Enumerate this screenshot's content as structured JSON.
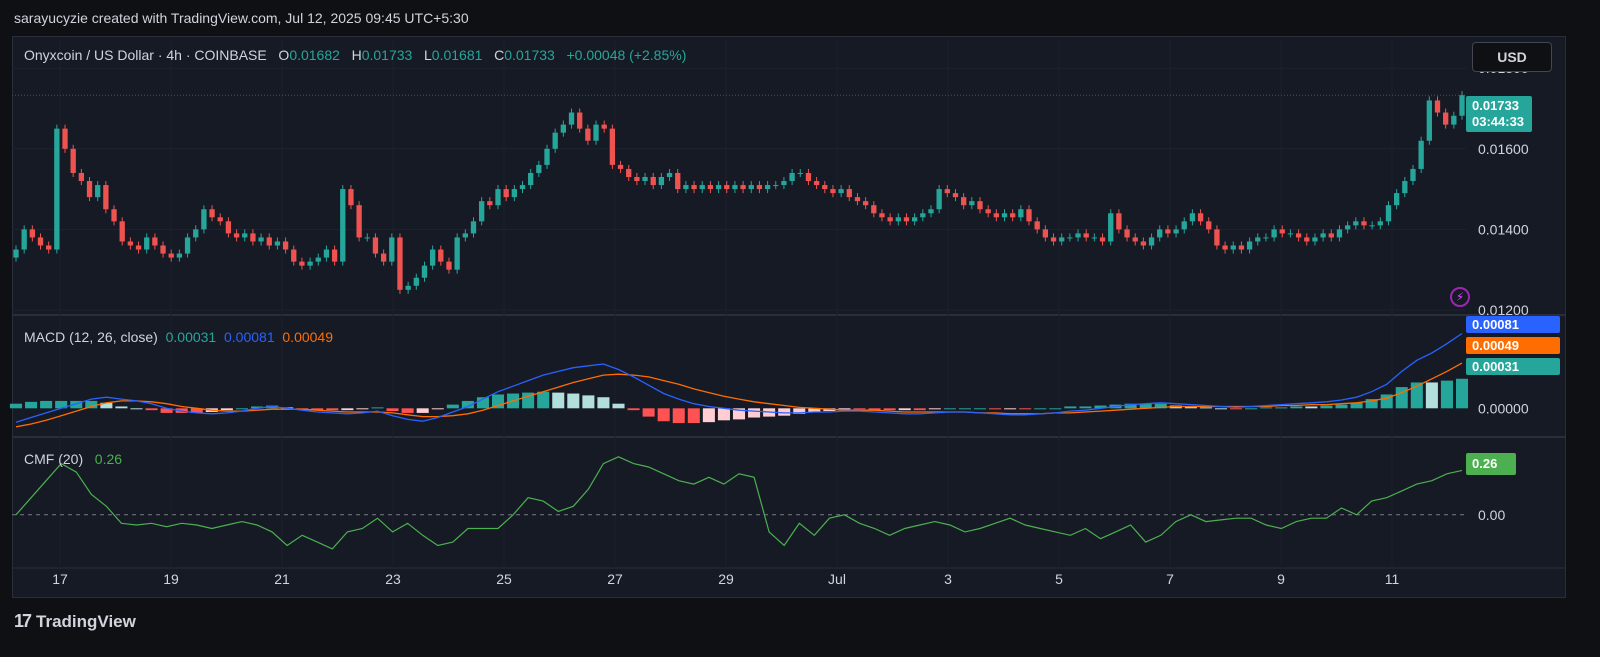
{
  "header": {
    "attribution": "sarayucyzie created with TradingView.com, Jul 12, 2025 09:45 UTC+5:30"
  },
  "legend": {
    "symbol": "Onyxcoin / US Dollar · 4h · COINBASE",
    "o_label": "O",
    "o_value": "0.01682",
    "h_label": "H",
    "h_value": "0.01733",
    "l_label": "L",
    "l_value": "0.01681",
    "c_label": "C",
    "c_value": "0.01733",
    "change": "+0.00048 (+2.85%)"
  },
  "currency_button": "USD",
  "price_tag": {
    "price": "0.01733",
    "countdown": "03:44:33"
  },
  "macd_legend": {
    "name": "MACD (12, 26, close)",
    "hist": "0.00031",
    "macd": "0.00081",
    "signal": "0.00049"
  },
  "macd_tags": {
    "macd": "0.00081",
    "signal": "0.00049",
    "hist": "0.00031"
  },
  "cmf_legend": {
    "name": "CMF (20)",
    "value": "0.26"
  },
  "cmf_tag": "0.26",
  "footer": {
    "logo_text": "TradingView",
    "logo_mark": "17"
  },
  "colors": {
    "up": "#26a69a",
    "down": "#ef5350",
    "macd": "#2962ff",
    "signal": "#ff6d00",
    "cmf": "#4caf50",
    "hist_up_strong": "#26a69a",
    "hist_up_weak": "#b2dfdb",
    "hist_down_strong": "#ff5252",
    "hist_down_weak": "#ffcdd2"
  },
  "chart_data": {
    "type": "candlestick",
    "timeframe": "4h",
    "x_ticks": [
      "17",
      "19",
      "21",
      "23",
      "25",
      "27",
      "29",
      "Jul",
      "3",
      "5",
      "7",
      "9",
      "11"
    ],
    "price_axis": {
      "ticks": [
        "0.01800",
        "0.01600",
        "0.01400",
        "0.01200"
      ],
      "ylim": [
        0.0119,
        0.0187
      ]
    },
    "macd_axis": {
      "ticks": [
        "0.00000"
      ],
      "ylim": [
        -0.0003,
        0.001
      ]
    },
    "cmf_axis": {
      "ticks": [
        "0.00"
      ],
      "ylim": [
        -0.3,
        0.45
      ]
    },
    "last_price": 0.01733,
    "close": [
      0.0135,
      0.014,
      0.0138,
      0.0136,
      0.0135,
      0.0165,
      0.016,
      0.0154,
      0.0152,
      0.0148,
      0.0151,
      0.0145,
      0.0142,
      0.0137,
      0.0136,
      0.0135,
      0.0138,
      0.0136,
      0.0134,
      0.0133,
      0.0134,
      0.0138,
      0.014,
      0.0145,
      0.0143,
      0.0142,
      0.0139,
      0.0138,
      0.0139,
      0.0137,
      0.0138,
      0.0136,
      0.0137,
      0.0135,
      0.0132,
      0.0131,
      0.0132,
      0.0133,
      0.0135,
      0.0132,
      0.015,
      0.0146,
      0.0138,
      0.0138,
      0.0134,
      0.0132,
      0.0138,
      0.0125,
      0.0126,
      0.0128,
      0.0131,
      0.0135,
      0.0132,
      0.013,
      0.0138,
      0.0139,
      0.0142,
      0.0147,
      0.0146,
      0.015,
      0.0148,
      0.015,
      0.0151,
      0.0154,
      0.0156,
      0.016,
      0.0164,
      0.0166,
      0.0169,
      0.0165,
      0.0162,
      0.0166,
      0.0165,
      0.0156,
      0.0155,
      0.0153,
      0.0152,
      0.0153,
      0.0151,
      0.0153,
      0.0154,
      0.015,
      0.0151,
      0.015,
      0.0151,
      0.015,
      0.0151,
      0.015,
      0.0151,
      0.015,
      0.0151,
      0.015,
      0.0151,
      0.0151,
      0.0152,
      0.0154,
      0.0154,
      0.0152,
      0.0151,
      0.015,
      0.0149,
      0.015,
      0.0148,
      0.0147,
      0.0146,
      0.0144,
      0.0143,
      0.0142,
      0.0143,
      0.0142,
      0.0143,
      0.0144,
      0.0145,
      0.015,
      0.0149,
      0.0148,
      0.0146,
      0.0147,
      0.0145,
      0.0144,
      0.0143,
      0.0144,
      0.0143,
      0.0145,
      0.0142,
      0.014,
      0.0138,
      0.0137,
      0.0138,
      0.0138,
      0.0139,
      0.0138,
      0.0138,
      0.0137,
      0.0144,
      0.014,
      0.0138,
      0.0137,
      0.0136,
      0.0138,
      0.014,
      0.0139,
      0.014,
      0.0142,
      0.0144,
      0.0142,
      0.014,
      0.0136,
      0.0135,
      0.0136,
      0.0135,
      0.0137,
      0.0138,
      0.0138,
      0.014,
      0.0139,
      0.0139,
      0.0138,
      0.0137,
      0.0138,
      0.0139,
      0.0138,
      0.014,
      0.0141,
      0.0142,
      0.0141,
      0.0141,
      0.0142,
      0.0146,
      0.0149,
      0.0152,
      0.0155,
      0.0162,
      0.0172,
      0.0169,
      0.0166,
      0.01682,
      0.01733
    ],
    "open": [
      0.0133,
      0.0135,
      0.014,
      0.0138,
      0.0136,
      0.0135,
      0.0165,
      0.016,
      0.0154,
      0.0152,
      0.0148,
      0.0151,
      0.0145,
      0.0142,
      0.0137,
      0.0136,
      0.0135,
      0.0138,
      0.0136,
      0.0134,
      0.0133,
      0.0134,
      0.0138,
      0.014,
      0.0145,
      0.0143,
      0.0142,
      0.0139,
      0.0138,
      0.0139,
      0.0137,
      0.0138,
      0.0136,
      0.0137,
      0.0135,
      0.0132,
      0.0131,
      0.0132,
      0.0133,
      0.0135,
      0.0132,
      0.015,
      0.0146,
      0.0138,
      0.0138,
      0.0134,
      0.0132,
      0.0138,
      0.0125,
      0.0126,
      0.0128,
      0.0131,
      0.0135,
      0.0132,
      0.013,
      0.0138,
      0.0139,
      0.0142,
      0.0147,
      0.0146,
      0.015,
      0.0148,
      0.015,
      0.0151,
      0.0154,
      0.0156,
      0.016,
      0.0164,
      0.0166,
      0.0169,
      0.0165,
      0.0162,
      0.0166,
      0.0165,
      0.0156,
      0.0155,
      0.0153,
      0.0152,
      0.0153,
      0.0151,
      0.0153,
      0.0154,
      0.015,
      0.0151,
      0.015,
      0.0151,
      0.015,
      0.0151,
      0.015,
      0.0151,
      0.015,
      0.0151,
      0.015,
      0.0151,
      0.0151,
      0.0152,
      0.0154,
      0.0154,
      0.0152,
      0.0151,
      0.015,
      0.0149,
      0.015,
      0.0148,
      0.0147,
      0.0146,
      0.0144,
      0.0143,
      0.0142,
      0.0143,
      0.0142,
      0.0143,
      0.0144,
      0.0145,
      0.015,
      0.0149,
      0.0148,
      0.0146,
      0.0147,
      0.0145,
      0.0144,
      0.0143,
      0.0144,
      0.0143,
      0.0145,
      0.0142,
      0.014,
      0.0138,
      0.0137,
      0.0138,
      0.0138,
      0.0139,
      0.0138,
      0.0138,
      0.0137,
      0.0144,
      0.014,
      0.0138,
      0.0137,
      0.0136,
      0.0138,
      0.014,
      0.0139,
      0.014,
      0.0142,
      0.0144,
      0.0142,
      0.014,
      0.0136,
      0.0135,
      0.0136,
      0.0135,
      0.0137,
      0.0138,
      0.0138,
      0.014,
      0.0139,
      0.0139,
      0.0138,
      0.0137,
      0.0138,
      0.0139,
      0.0138,
      0.014,
      0.0141,
      0.0142,
      0.0141,
      0.0141,
      0.0142,
      0.0146,
      0.0149,
      0.0152,
      0.0155,
      0.0162,
      0.0172,
      0.0169,
      0.0166,
      0.01682
    ],
    "macd": [
      -0.00015,
      -0.0001,
      -5e-05,
      0.0,
      5e-05,
      0.0001,
      0.00012,
      0.0001,
      8e-05,
      5e-05,
      0.0,
      -3e-05,
      -5e-05,
      -6e-05,
      -5e-05,
      -3e-05,
      0.0,
      2e-05,
      0.0,
      -2e-05,
      -4e-05,
      -5e-05,
      -6e-05,
      -5e-05,
      -3e-05,
      -8e-05,
      -0.00012,
      -0.00014,
      -0.0001,
      -4e-05,
      2e-05,
      0.0001,
      0.00018,
      0.00024,
      0.0003,
      0.00036,
      0.0004,
      0.00044,
      0.00046,
      0.00048,
      0.00042,
      0.00034,
      0.00025,
      0.00016,
      0.0001,
      5e-05,
      2e-05,
      0.0,
      -2e-05,
      -3e-05,
      -4e-05,
      -5e-05,
      -5e-05,
      -4e-05,
      -4e-05,
      -3e-05,
      -3e-05,
      -4e-05,
      -5e-05,
      -6e-05,
      -6e-05,
      -5e-05,
      -4e-05,
      -4e-05,
      -5e-05,
      -6e-05,
      -7e-05,
      -7e-05,
      -6e-05,
      -5e-05,
      -3e-05,
      -2e-05,
      0.0,
      2e-05,
      4e-05,
      5e-05,
      6e-05,
      5e-05,
      4e-05,
      3e-05,
      2e-05,
      1e-05,
      2e-05,
      3e-05,
      4e-05,
      5e-05,
      6e-05,
      7e-05,
      9e-05,
      0.00012,
      0.00018,
      0.00026,
      0.0004,
      0.00052,
      0.0006,
      0.0007,
      0.00081
    ],
    "signal": [
      -0.0002,
      -0.00017,
      -0.00013,
      -8e-05,
      -3e-05,
      2e-05,
      6e-05,
      8e-05,
      8e-05,
      7e-05,
      5e-05,
      2e-05,
      0.0,
      -2e-05,
      -3e-05,
      -3e-05,
      -2e-05,
      -1e-05,
      -1e-05,
      -1e-05,
      -2e-05,
      -3e-05,
      -4e-05,
      -4e-05,
      -4e-05,
      -5e-05,
      -7e-05,
      -9e-05,
      -9e-05,
      -8e-05,
      -6e-05,
      -2e-05,
      3e-05,
      8e-05,
      0.00013,
      0.00018,
      0.00023,
      0.00028,
      0.00032,
      0.00036,
      0.00037,
      0.00036,
      0.00034,
      0.0003,
      0.00026,
      0.00021,
      0.00017,
      0.00013,
      0.0001,
      7e-05,
      5e-05,
      3e-05,
      1e-05,
      0.0,
      -1e-05,
      -2e-05,
      -2e-05,
      -2e-05,
      -3e-05,
      -4e-05,
      -4e-05,
      -4e-05,
      -4e-05,
      -4e-05,
      -5e-05,
      -5e-05,
      -6e-05,
      -6e-05,
      -6e-05,
      -5e-05,
      -5e-05,
      -4e-05,
      -3e-05,
      -2e-05,
      -1e-05,
      0.0,
      1e-05,
      2e-05,
      2e-05,
      2e-05,
      2e-05,
      2e-05,
      2e-05,
      2e-05,
      3e-05,
      3e-05,
      4e-05,
      4e-05,
      5e-05,
      6e-05,
      8e-05,
      0.00011,
      0.00017,
      0.00024,
      0.00032,
      0.0004,
      0.00049
    ],
    "cmf": [
      0.0,
      0.1,
      0.2,
      0.3,
      0.25,
      0.12,
      0.05,
      -0.05,
      -0.06,
      -0.05,
      -0.07,
      -0.05,
      -0.06,
      -0.08,
      -0.06,
      -0.04,
      -0.06,
      -0.1,
      -0.18,
      -0.12,
      -0.16,
      -0.2,
      -0.1,
      -0.08,
      -0.02,
      -0.1,
      -0.05,
      -0.12,
      -0.18,
      -0.16,
      -0.08,
      -0.08,
      -0.08,
      0.0,
      0.1,
      0.08,
      0.02,
      0.05,
      0.15,
      0.3,
      0.34,
      0.3,
      0.28,
      0.24,
      0.2,
      0.18,
      0.22,
      0.18,
      0.24,
      0.22,
      -0.1,
      -0.18,
      -0.05,
      -0.12,
      -0.02,
      0.0,
      -0.05,
      -0.08,
      -0.12,
      -0.08,
      -0.06,
      -0.04,
      -0.06,
      -0.1,
      -0.08,
      -0.05,
      -0.02,
      -0.06,
      -0.08,
      -0.1,
      -0.12,
      -0.08,
      -0.14,
      -0.1,
      -0.06,
      -0.16,
      -0.12,
      -0.04,
      0.0,
      -0.04,
      -0.03,
      -0.02,
      -0.02,
      -0.06,
      -0.08,
      -0.04,
      -0.02,
      -0.02,
      0.04,
      0.0,
      0.08,
      0.1,
      0.14,
      0.18,
      0.2,
      0.24,
      0.26
    ],
    "cmf_zero_line": 0.0
  }
}
